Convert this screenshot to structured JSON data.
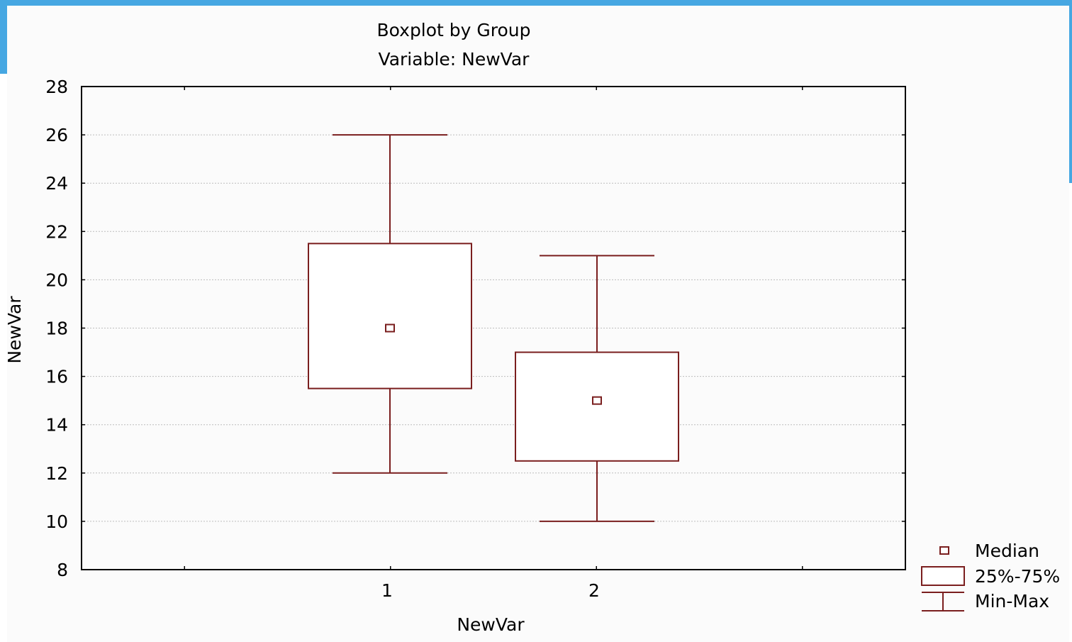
{
  "chart_data": {
    "type": "box",
    "title": "Boxplot by Group",
    "subtitle": "Variable: NewVar",
    "xlabel": "NewVar",
    "ylabel": "NewVar",
    "categories": [
      "1",
      "2"
    ],
    "ylim": [
      8,
      28
    ],
    "yticks": [
      "8",
      "10",
      "12",
      "14",
      "16",
      "18",
      "20",
      "22",
      "24",
      "26",
      "28"
    ],
    "grid": true,
    "legend_position": "bottom-right",
    "series": [
      {
        "category": "1",
        "min": 12,
        "q1": 15.5,
        "median": 18,
        "q3": 21.5,
        "max": 26
      },
      {
        "category": "2",
        "min": 10,
        "q1": 12.5,
        "median": 15,
        "q3": 17,
        "max": 21
      }
    ],
    "legend": [
      {
        "symbol": "median",
        "label": "Median"
      },
      {
        "symbol": "box",
        "label": "25%-75%"
      },
      {
        "symbol": "whisker",
        "label": "Min-Max"
      }
    ],
    "colors": {
      "box": "#7a1e1e",
      "frame": "#46a7e2",
      "grid": "#bdbdbd"
    }
  }
}
